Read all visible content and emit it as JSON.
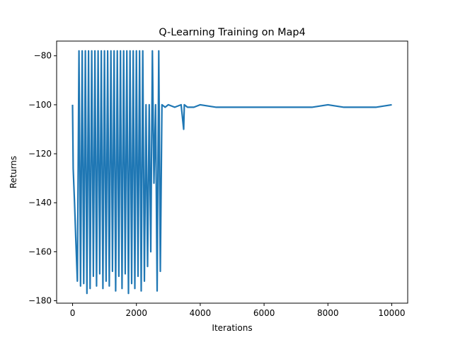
{
  "chart_data": {
    "type": "line",
    "title": "Q-Learning Training on Map4",
    "xlabel": "Iterations",
    "ylabel": "Returns",
    "xlim": [
      -500,
      10500
    ],
    "ylim": [
      -181,
      -74
    ],
    "xticks": [
      0,
      2000,
      4000,
      6000,
      8000,
      10000
    ],
    "xtick_labels": [
      "0",
      "2000",
      "4000",
      "6000",
      "8000",
      "10000"
    ],
    "yticks": [
      -180,
      -160,
      -140,
      -120,
      -100,
      -80
    ],
    "ytick_labels": [
      "−180",
      "−160",
      "−140",
      "−120",
      "−100",
      "−80"
    ],
    "grid": false,
    "legend": null,
    "series": [
      {
        "color": "#1f77b4",
        "description_points": {
          "x": [
            0,
            20,
            60,
            100,
            150,
            200,
            250,
            300,
            350,
            400,
            450,
            500,
            550,
            600,
            650,
            700,
            750,
            800,
            850,
            900,
            950,
            1000,
            1050,
            1100,
            1150,
            1200,
            1250,
            1300,
            1350,
            1400,
            1450,
            1500,
            1550,
            1600,
            1650,
            1700,
            1750,
            1800,
            1850,
            1900,
            1950,
            2000,
            2050,
            2100,
            2150,
            2200,
            2250,
            2300,
            2350,
            2400,
            2450,
            2500,
            2550,
            2600,
            2650,
            2700,
            2750,
            2800,
            2900,
            3000,
            3200,
            3400,
            3480,
            3500,
            3600,
            3800,
            4000,
            4500,
            5000,
            5500,
            6000,
            6500,
            7000,
            7500,
            8000,
            8500,
            9000,
            9500,
            10000
          ],
          "y": [
            -100,
            -126,
            -140,
            -155,
            -172,
            -78,
            -174,
            -78,
            -173,
            -78,
            -177,
            -78,
            -175,
            -78,
            -170,
            -78,
            -174,
            -78,
            -169,
            -78,
            -175,
            -78,
            -172,
            -78,
            -174,
            -78,
            -168,
            -78,
            -176,
            -78,
            -170,
            -78,
            -175,
            -78,
            -169,
            -78,
            -177,
            -78,
            -173,
            -78,
            -175,
            -78,
            -170,
            -78,
            -176,
            -78,
            -172,
            -100,
            -166,
            -100,
            -160,
            -78,
            -132,
            -100,
            -176,
            -78,
            -168,
            -100,
            -101,
            -100,
            -101,
            -100,
            -110,
            -100,
            -101,
            -101,
            -100,
            -101,
            -101,
            -101,
            -101,
            -101,
            -101,
            -101,
            -100,
            -101,
            -101,
            -101,
            -100
          ]
        }
      }
    ]
  }
}
